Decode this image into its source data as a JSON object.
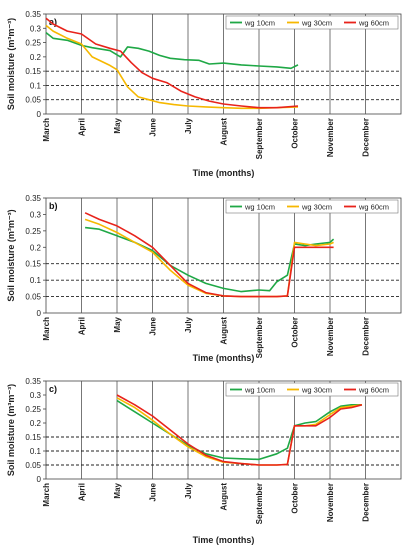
{
  "chart_data": [
    {
      "type": "line",
      "panel_label": "a)",
      "ylabel": "Soil moisture (m³m⁻³)",
      "xlabel": "Time (months)",
      "y_ticks": [
        "0",
        "0.05",
        "0.1",
        "0.15",
        "0.2",
        "0.25",
        "0.3",
        "0.35"
      ],
      "ylim": [
        0,
        0.35
      ],
      "x_ticks": [
        "March",
        "April",
        "May",
        "June",
        "July",
        "August",
        "September",
        "October",
        "November",
        "December"
      ],
      "dashed_reference_lines": [
        0.05,
        0.1,
        0.15
      ],
      "legend_placement": "top-right",
      "series": [
        {
          "name": "wg 10cm",
          "color": "#1fa846",
          "x": [
            0.0,
            0.2,
            0.6,
            1.0,
            1.3,
            1.8,
            2.1,
            2.3,
            2.6,
            2.9,
            3.2,
            3.5,
            3.9,
            4.3,
            4.6,
            5.0,
            5.5,
            6.0,
            6.5,
            6.9,
            7.1
          ],
          "values": [
            0.285,
            0.265,
            0.258,
            0.24,
            0.232,
            0.222,
            0.2,
            0.235,
            0.23,
            0.22,
            0.205,
            0.195,
            0.19,
            0.188,
            0.175,
            0.178,
            0.172,
            0.168,
            0.165,
            0.16,
            0.172
          ]
        },
        {
          "name": "wg 30cm",
          "color": "#f6b800",
          "x": [
            0.0,
            0.2,
            0.6,
            1.0,
            1.3,
            1.8,
            2.0,
            2.3,
            2.6,
            2.9,
            3.2,
            3.6,
            4.0,
            4.5,
            5.0,
            5.5,
            6.0,
            6.5,
            7.1
          ],
          "values": [
            0.31,
            0.29,
            0.265,
            0.245,
            0.2,
            0.17,
            0.155,
            0.095,
            0.06,
            0.05,
            0.04,
            0.033,
            0.028,
            0.025,
            0.022,
            0.02,
            0.02,
            0.022,
            0.025
          ]
        },
        {
          "name": "wg 60cm",
          "color": "#e8231b",
          "x": [
            0.0,
            0.2,
            0.6,
            1.0,
            1.4,
            1.8,
            2.1,
            2.4,
            2.7,
            3.0,
            3.4,
            3.8,
            4.2,
            4.6,
            5.0,
            5.5,
            6.0,
            6.5,
            7.1
          ],
          "values": [
            0.335,
            0.315,
            0.29,
            0.28,
            0.245,
            0.23,
            0.22,
            0.18,
            0.145,
            0.125,
            0.11,
            0.08,
            0.06,
            0.045,
            0.035,
            0.028,
            0.022,
            0.022,
            0.028
          ]
        }
      ]
    },
    {
      "type": "line",
      "panel_label": "b)",
      "ylabel": "Soil moisture (m³m⁻³)",
      "xlabel": "Time (months)",
      "y_ticks": [
        "0",
        "0.05",
        "0.1",
        "0.15",
        "0.2",
        "0.25",
        "0.3",
        "0.35"
      ],
      "ylim": [
        0,
        0.35
      ],
      "x_ticks": [
        "March",
        "April",
        "May",
        "June",
        "July",
        "August",
        "September",
        "October",
        "November",
        "December"
      ],
      "dashed_reference_lines": [
        0.05,
        0.1,
        0.15
      ],
      "legend_placement": "top-right",
      "series": [
        {
          "name": "wg 10cm",
          "color": "#1fa846",
          "x": [
            1.1,
            1.5,
            2.0,
            2.5,
            3.0,
            3.5,
            4.0,
            4.5,
            5.0,
            5.5,
            6.0,
            6.3,
            6.5,
            6.8,
            7.0,
            7.3,
            7.6,
            8.0,
            8.1
          ],
          "values": [
            0.26,
            0.255,
            0.235,
            0.215,
            0.19,
            0.145,
            0.115,
            0.09,
            0.075,
            0.065,
            0.07,
            0.068,
            0.095,
            0.115,
            0.21,
            0.205,
            0.21,
            0.215,
            0.225
          ]
        },
        {
          "name": "wg 30cm",
          "color": "#f6b800",
          "x": [
            1.1,
            1.5,
            2.0,
            2.5,
            3.0,
            3.5,
            4.0,
            4.5,
            5.0,
            5.5,
            6.0,
            6.5,
            6.8,
            7.0,
            7.3,
            7.6,
            8.0,
            8.1
          ],
          "values": [
            0.285,
            0.27,
            0.245,
            0.215,
            0.185,
            0.13,
            0.085,
            0.06,
            0.052,
            0.05,
            0.05,
            0.05,
            0.052,
            0.215,
            0.21,
            0.205,
            0.21,
            0.215
          ]
        },
        {
          "name": "wg 60cm",
          "color": "#e8231b",
          "x": [
            1.1,
            1.5,
            2.0,
            2.5,
            3.0,
            3.5,
            4.0,
            4.5,
            5.0,
            5.5,
            6.0,
            6.5,
            6.8,
            7.0,
            7.3,
            7.6,
            8.0,
            8.1
          ],
          "values": [
            0.305,
            0.285,
            0.265,
            0.235,
            0.2,
            0.145,
            0.09,
            0.062,
            0.052,
            0.05,
            0.05,
            0.05,
            0.052,
            0.2,
            0.2,
            0.2,
            0.2,
            0.2
          ]
        }
      ]
    },
    {
      "type": "line",
      "panel_label": "c)",
      "ylabel": "Soil moisture (m³m⁻³)",
      "xlabel": "Time (months)",
      "y_ticks": [
        "0",
        "0.05",
        "0.1",
        "0.15",
        "0.2",
        "0.25",
        "0.3",
        "0.35"
      ],
      "ylim": [
        0,
        0.35
      ],
      "x_ticks": [
        "March",
        "April",
        "May",
        "June",
        "July",
        "August",
        "September",
        "October",
        "November",
        "December"
      ],
      "dashed_reference_lines": [
        0.05,
        0.1,
        0.15
      ],
      "legend_placement": "top-right",
      "series": [
        {
          "name": "wg 10cm",
          "color": "#1fa846",
          "x": [
            2.0,
            2.5,
            3.0,
            3.5,
            4.0,
            4.5,
            5.0,
            5.5,
            6.0,
            6.5,
            6.8,
            7.0,
            7.3,
            7.6,
            8.0,
            8.3,
            8.6,
            8.9
          ],
          "values": [
            0.28,
            0.24,
            0.2,
            0.16,
            0.12,
            0.09,
            0.075,
            0.072,
            0.07,
            0.09,
            0.11,
            0.19,
            0.2,
            0.205,
            0.24,
            0.26,
            0.265,
            0.265
          ]
        },
        {
          "name": "wg 30cm",
          "color": "#f6b800",
          "x": [
            2.0,
            2.5,
            3.0,
            3.5,
            4.0,
            4.5,
            5.0,
            5.5,
            6.0,
            6.5,
            6.8,
            7.0,
            7.3,
            7.6,
            8.0,
            8.3,
            8.6,
            8.9
          ],
          "values": [
            0.29,
            0.255,
            0.21,
            0.16,
            0.115,
            0.08,
            0.06,
            0.055,
            0.05,
            0.05,
            0.052,
            0.19,
            0.19,
            0.195,
            0.23,
            0.255,
            0.26,
            0.265
          ]
        },
        {
          "name": "wg 60cm",
          "color": "#e8231b",
          "x": [
            2.0,
            2.5,
            3.0,
            3.5,
            4.0,
            4.5,
            5.0,
            5.5,
            6.0,
            6.5,
            6.8,
            7.0,
            7.3,
            7.6,
            8.0,
            8.3,
            8.6,
            8.9
          ],
          "values": [
            0.3,
            0.265,
            0.225,
            0.175,
            0.125,
            0.085,
            0.062,
            0.055,
            0.05,
            0.05,
            0.052,
            0.19,
            0.19,
            0.19,
            0.22,
            0.25,
            0.255,
            0.265
          ]
        }
      ]
    }
  ]
}
